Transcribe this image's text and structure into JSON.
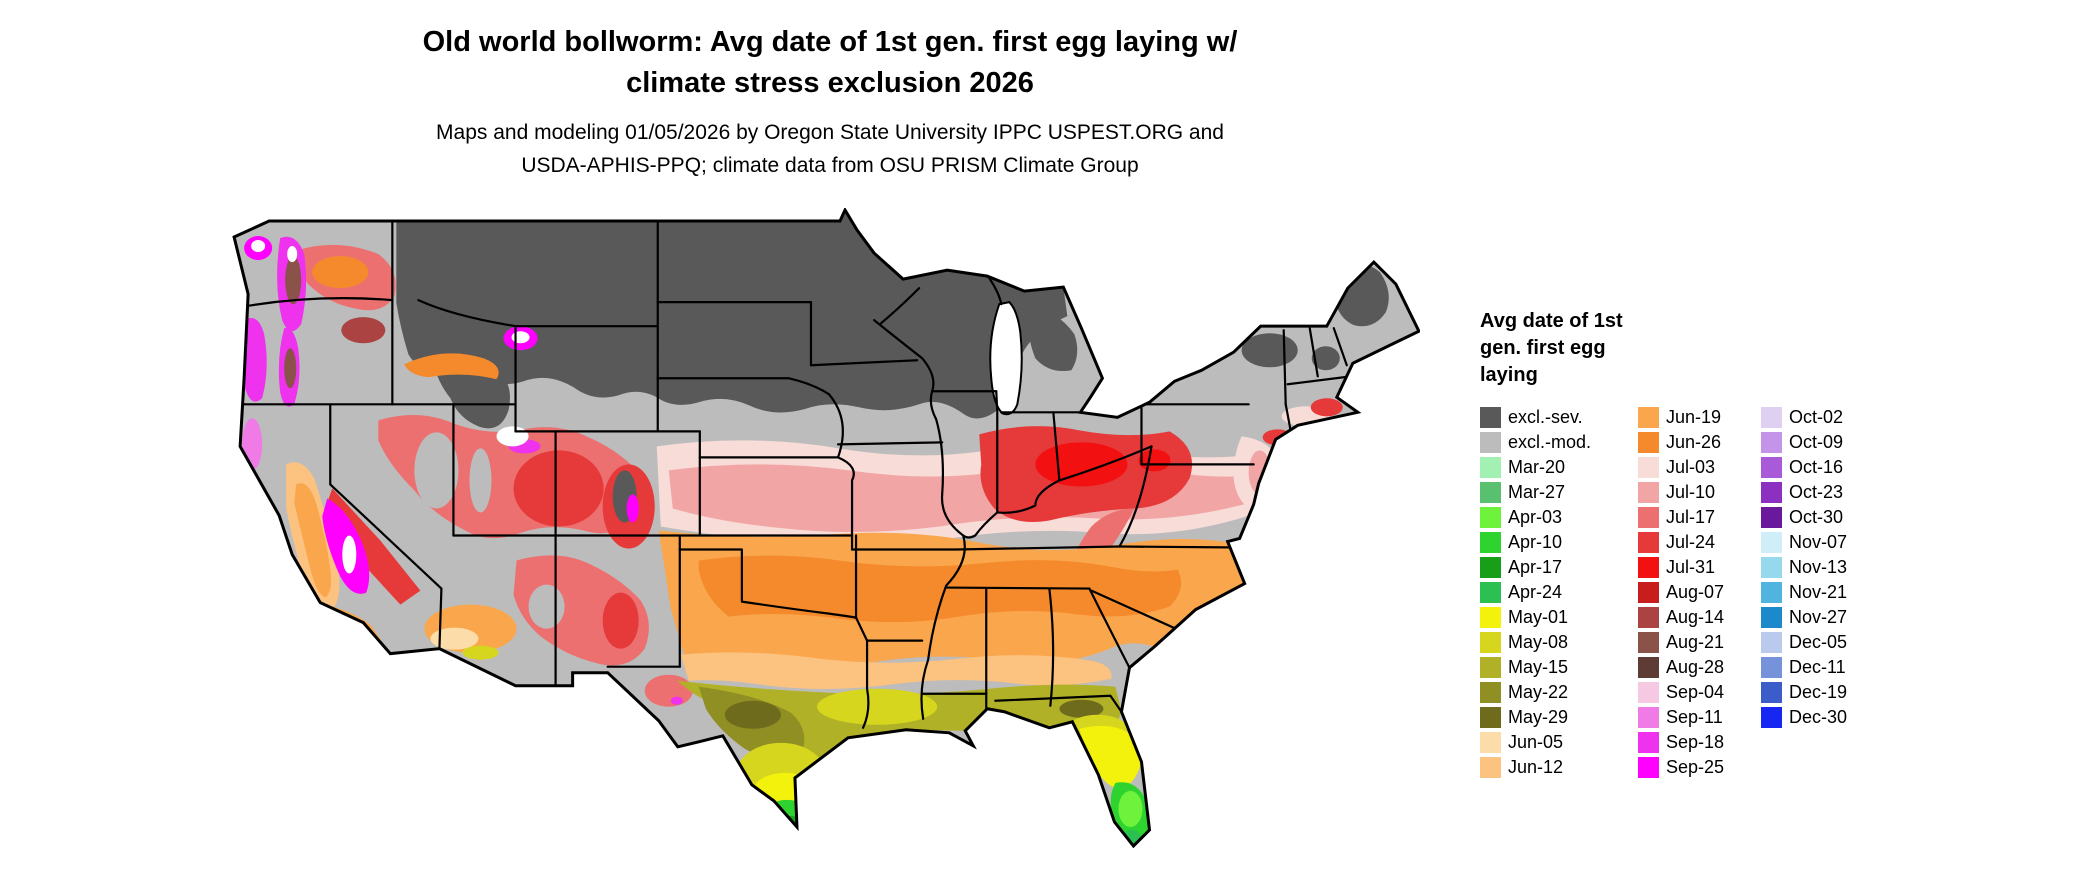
{
  "header": {
    "title_line1": "Old world bollworm: Avg date of 1st gen. first egg laying w/",
    "title_line2": "climate stress exclusion 2026",
    "subtitle_line1": "Maps and modeling 01/05/2026 by Oregon State University IPPC USPEST.ORG and",
    "subtitle_line2": "USDA-APHIS-PPQ; climate data from OSU PRISM Climate Group"
  },
  "legend": {
    "title": "Avg date of 1st gen. first egg laying",
    "columns": [
      {
        "items": [
          {
            "key": "excl_sev",
            "label": "excl.-sev."
          },
          {
            "key": "excl_mod",
            "label": "excl.-mod."
          },
          {
            "key": "mar20",
            "label": "Mar-20"
          },
          {
            "key": "mar27",
            "label": "Mar-27"
          },
          {
            "key": "apr03",
            "label": "Apr-03"
          },
          {
            "key": "apr10",
            "label": "Apr-10"
          },
          {
            "key": "apr17",
            "label": "Apr-17"
          },
          {
            "key": "apr24",
            "label": "Apr-24"
          },
          {
            "key": "may01",
            "label": "May-01"
          },
          {
            "key": "may08",
            "label": "May-08"
          },
          {
            "key": "may15",
            "label": "May-15"
          },
          {
            "key": "may22",
            "label": "May-22"
          },
          {
            "key": "may29",
            "label": "May-29"
          },
          {
            "key": "jun05",
            "label": "Jun-05"
          },
          {
            "key": "jun12",
            "label": "Jun-12"
          }
        ]
      },
      {
        "items": [
          {
            "key": "jun19",
            "label": "Jun-19"
          },
          {
            "key": "jun26",
            "label": "Jun-26"
          },
          {
            "key": "jul03",
            "label": "Jul-03"
          },
          {
            "key": "jul10",
            "label": "Jul-10"
          },
          {
            "key": "jul17",
            "label": "Jul-17"
          },
          {
            "key": "jul24",
            "label": "Jul-24"
          },
          {
            "key": "jul31",
            "label": "Jul-31"
          },
          {
            "key": "aug07",
            "label": "Aug-07"
          },
          {
            "key": "aug14",
            "label": "Aug-14"
          },
          {
            "key": "aug21",
            "label": "Aug-21"
          },
          {
            "key": "aug28",
            "label": "Aug-28"
          },
          {
            "key": "sep04",
            "label": "Sep-04"
          },
          {
            "key": "sep11",
            "label": "Sep-11"
          },
          {
            "key": "sep18",
            "label": "Sep-18"
          },
          {
            "key": "sep25",
            "label": "Sep-25"
          }
        ]
      },
      {
        "items": [
          {
            "key": "oct02",
            "label": "Oct-02"
          },
          {
            "key": "oct09",
            "label": "Oct-09"
          },
          {
            "key": "oct16",
            "label": "Oct-16"
          },
          {
            "key": "oct23",
            "label": "Oct-23"
          },
          {
            "key": "oct30",
            "label": "Oct-30"
          },
          {
            "key": "nov07",
            "label": "Nov-07"
          },
          {
            "key": "nov13",
            "label": "Nov-13"
          },
          {
            "key": "nov21",
            "label": "Nov-21"
          },
          {
            "key": "nov27",
            "label": "Nov-27"
          },
          {
            "key": "dec05",
            "label": "Dec-05"
          },
          {
            "key": "dec11",
            "label": "Dec-11"
          },
          {
            "key": "dec19",
            "label": "Dec-19"
          },
          {
            "key": "dec30",
            "label": "Dec-30"
          }
        ]
      }
    ]
  },
  "palette": {
    "excl_sev": "#595959",
    "excl_mod": "#bcbcbc",
    "mar20": "#a2f0b2",
    "mar27": "#58c06e",
    "apr03": "#6ef23c",
    "apr10": "#2fd32f",
    "apr17": "#189e18",
    "apr24": "#2cc052",
    "may01": "#f2f20c",
    "may08": "#d6d61f",
    "may15": "#b1b128",
    "may22": "#8f8f24",
    "may29": "#6f6b1c",
    "jun05": "#fcdca8",
    "jun12": "#fcc280",
    "jun19": "#faa64c",
    "jun26": "#f58a2c",
    "jul03": "#f8dcd8",
    "jul10": "#f2a5a5",
    "jul17": "#ed7070",
    "jul24": "#e63a3a",
    "jul31": "#f21010",
    "aug07": "#c81d1d",
    "aug14": "#ab4343",
    "aug21": "#8a5248",
    "aug28": "#5e3b35",
    "sep04": "#f6c9e2",
    "sep11": "#f07ae6",
    "sep18": "#ee32ee",
    "sep25": "#ff00ff",
    "oct02": "#ded0f0",
    "oct09": "#c494e8",
    "oct16": "#a85ad8",
    "oct23": "#8c30c2",
    "oct30": "#6a189c",
    "nov07": "#cfeef8",
    "nov13": "#96d8ec",
    "nov21": "#50b4de",
    "nov27": "#1c8aca",
    "dec05": "#bacaec",
    "dec11": "#7592da",
    "dec19": "#3c5cca",
    "dec30": "#1726f0",
    "blank": "#ffffff"
  }
}
